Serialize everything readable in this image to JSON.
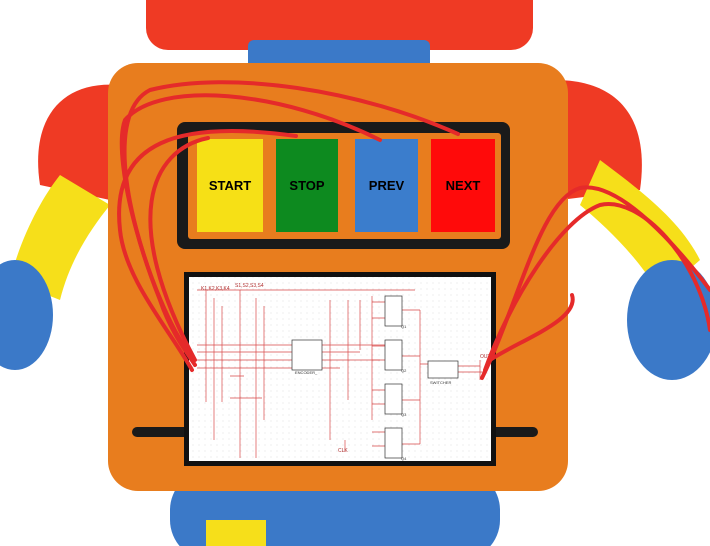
{
  "colors": {
    "head": "#ef3a24",
    "neck": "#3b79c8",
    "body": "#e87d1e",
    "shoulder": "#ef3a24",
    "arm": "#f6df1a",
    "hand": "#3b79c8",
    "panel": "#1a1a1a",
    "wire": "#e52a2a",
    "start": "#f6e016",
    "stop": "#0d8a1f",
    "prev": "#3b7dcc",
    "next": "#ff0a0a"
  },
  "buttons": {
    "start": "START",
    "stop": "STOP",
    "prev": "PREV",
    "next": "NEXT"
  },
  "schematic": {
    "net_a": "K1,K2,K3,K4",
    "net_b": "S1,S2,S3,S4",
    "chip_main": "ENCODER_",
    "chip_out": "SWITCHER",
    "reg_label": "REG",
    "q1": "Q1",
    "q2": "Q2",
    "q3": "Q3",
    "q4": "Q4",
    "clk": "CLK",
    "out": "OUT"
  }
}
